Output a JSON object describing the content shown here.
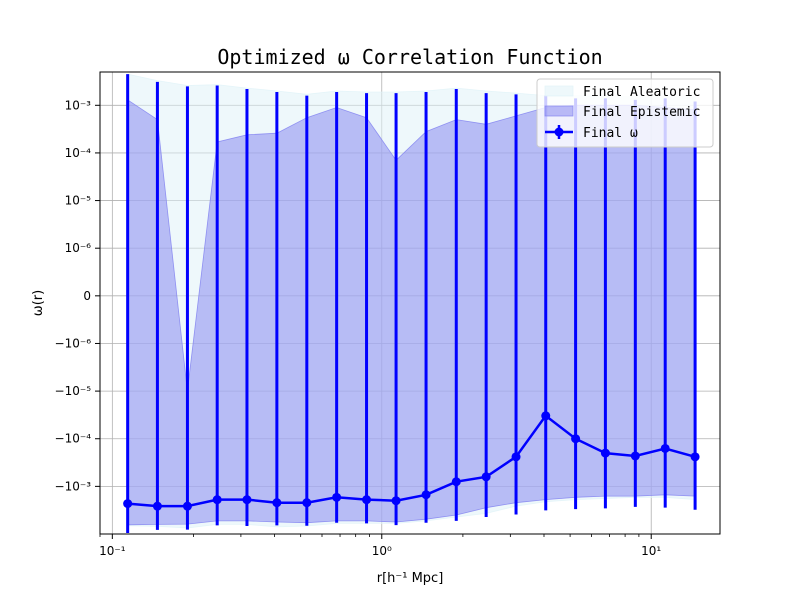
{
  "chart_data": {
    "type": "line",
    "title": "Optimized ω Correlation Function",
    "xlabel": "r[h⁻¹ Mpc]",
    "ylabel": "ω(r)",
    "xscale": "log",
    "yscale": "symlog",
    "xlim": [
      0.09,
      18
    ],
    "x_ticks": [
      {
        "value": 0.1,
        "label": "10⁻¹"
      },
      {
        "value": 1,
        "label": "10⁰"
      },
      {
        "value": 10,
        "label": "10¹"
      }
    ],
    "y_ticks": [
      {
        "value": 0.001,
        "label": "10⁻³"
      },
      {
        "value": 0.0001,
        "label": "10⁻⁴"
      },
      {
        "value": 1e-05,
        "label": "10⁻⁵"
      },
      {
        "value": 1e-06,
        "label": "10⁻⁶"
      },
      {
        "value": 0,
        "label": "0"
      },
      {
        "value": -1e-06,
        "label": "−10⁻⁶"
      },
      {
        "value": -1e-05,
        "label": "−10⁻⁵"
      },
      {
        "value": -0.0001,
        "label": "−10⁻⁴"
      },
      {
        "value": -0.001,
        "label": "−10⁻³"
      }
    ],
    "grid": true,
    "legend_position": "top-right",
    "x": [
      0.114,
      0.147,
      0.19,
      0.245,
      0.316,
      0.408,
      0.527,
      0.68,
      0.878,
      1.13,
      1.46,
      1.89,
      2.44,
      3.15,
      4.06,
      5.24,
      6.76,
      8.73,
      11.27,
      14.55
    ],
    "series": [
      {
        "name": "Final Aleatoric",
        "kind": "band",
        "color": "#e0f2f8",
        "upper": [
          0.0045,
          0.0033,
          0.0026,
          0.0027,
          0.0023,
          0.002,
          0.0017,
          0.002,
          0.0019,
          0.0019,
          0.002,
          0.0023,
          0.002,
          0.0018,
          0.0016,
          0.0016,
          0.0015,
          0.0015,
          0.0015,
          0.0015
        ],
        "lower": [
          -0.0067,
          -0.0069,
          -0.0075,
          -0.0063,
          -0.0063,
          -0.0071,
          -0.0068,
          -0.006,
          -0.006,
          -0.006,
          -0.0053,
          -0.0044,
          -0.0037,
          -0.0026,
          -0.0021,
          -0.0019,
          -0.0018,
          -0.0017,
          -0.0017,
          -0.0019
        ]
      },
      {
        "name": "Final Epistemic",
        "kind": "band",
        "color": "#8080f0",
        "upper": [
          0.0013,
          0.0005,
          -1e-05,
          0.00017,
          0.00024,
          0.00026,
          0.00055,
          0.0009,
          0.00055,
          7e-05,
          0.00028,
          0.0005,
          0.0004,
          0.0006,
          0.0009,
          0.001,
          0.001,
          0.001,
          0.0009,
          0.0008
        ],
        "lower": [
          -0.0064,
          -0.0063,
          -0.0062,
          -0.0053,
          -0.0053,
          -0.0056,
          -0.0058,
          -0.0053,
          -0.0053,
          -0.0056,
          -0.0049,
          -0.004,
          -0.0028,
          -0.0022,
          -0.0019,
          -0.0017,
          -0.0016,
          -0.0016,
          -0.0015,
          -0.0016
        ]
      },
      {
        "name": "Final ω",
        "kind": "line_errorbar",
        "color": "#0000ff",
        "values": [
          -0.0023,
          -0.0026,
          -0.0026,
          -0.0019,
          -0.0019,
          -0.0022,
          -0.0022,
          -0.0017,
          -0.0019,
          -0.002,
          -0.0015,
          -0.0008,
          -0.00063,
          -0.00024,
          -3.3e-05,
          -0.0001,
          -0.0002,
          -0.00023,
          -0.00016,
          -0.00024
        ],
        "err_upper": [
          0.0045,
          0.0031,
          0.0025,
          0.0026,
          0.0022,
          0.0019,
          0.0016,
          0.0019,
          0.0018,
          0.0018,
          0.0019,
          0.0022,
          0.0018,
          0.0017,
          0.0016,
          0.0014,
          0.0014,
          0.0013,
          0.0014,
          0.0012
        ],
        "err_lower": [
          -0.0095,
          -0.0082,
          -0.0081,
          -0.0066,
          -0.0068,
          -0.0066,
          -0.0067,
          -0.0058,
          -0.006,
          -0.0065,
          -0.0058,
          -0.0053,
          -0.0044,
          -0.0039,
          -0.0032,
          -0.003,
          -0.0029,
          -0.0027,
          -0.0028,
          -0.0031
        ]
      }
    ]
  }
}
